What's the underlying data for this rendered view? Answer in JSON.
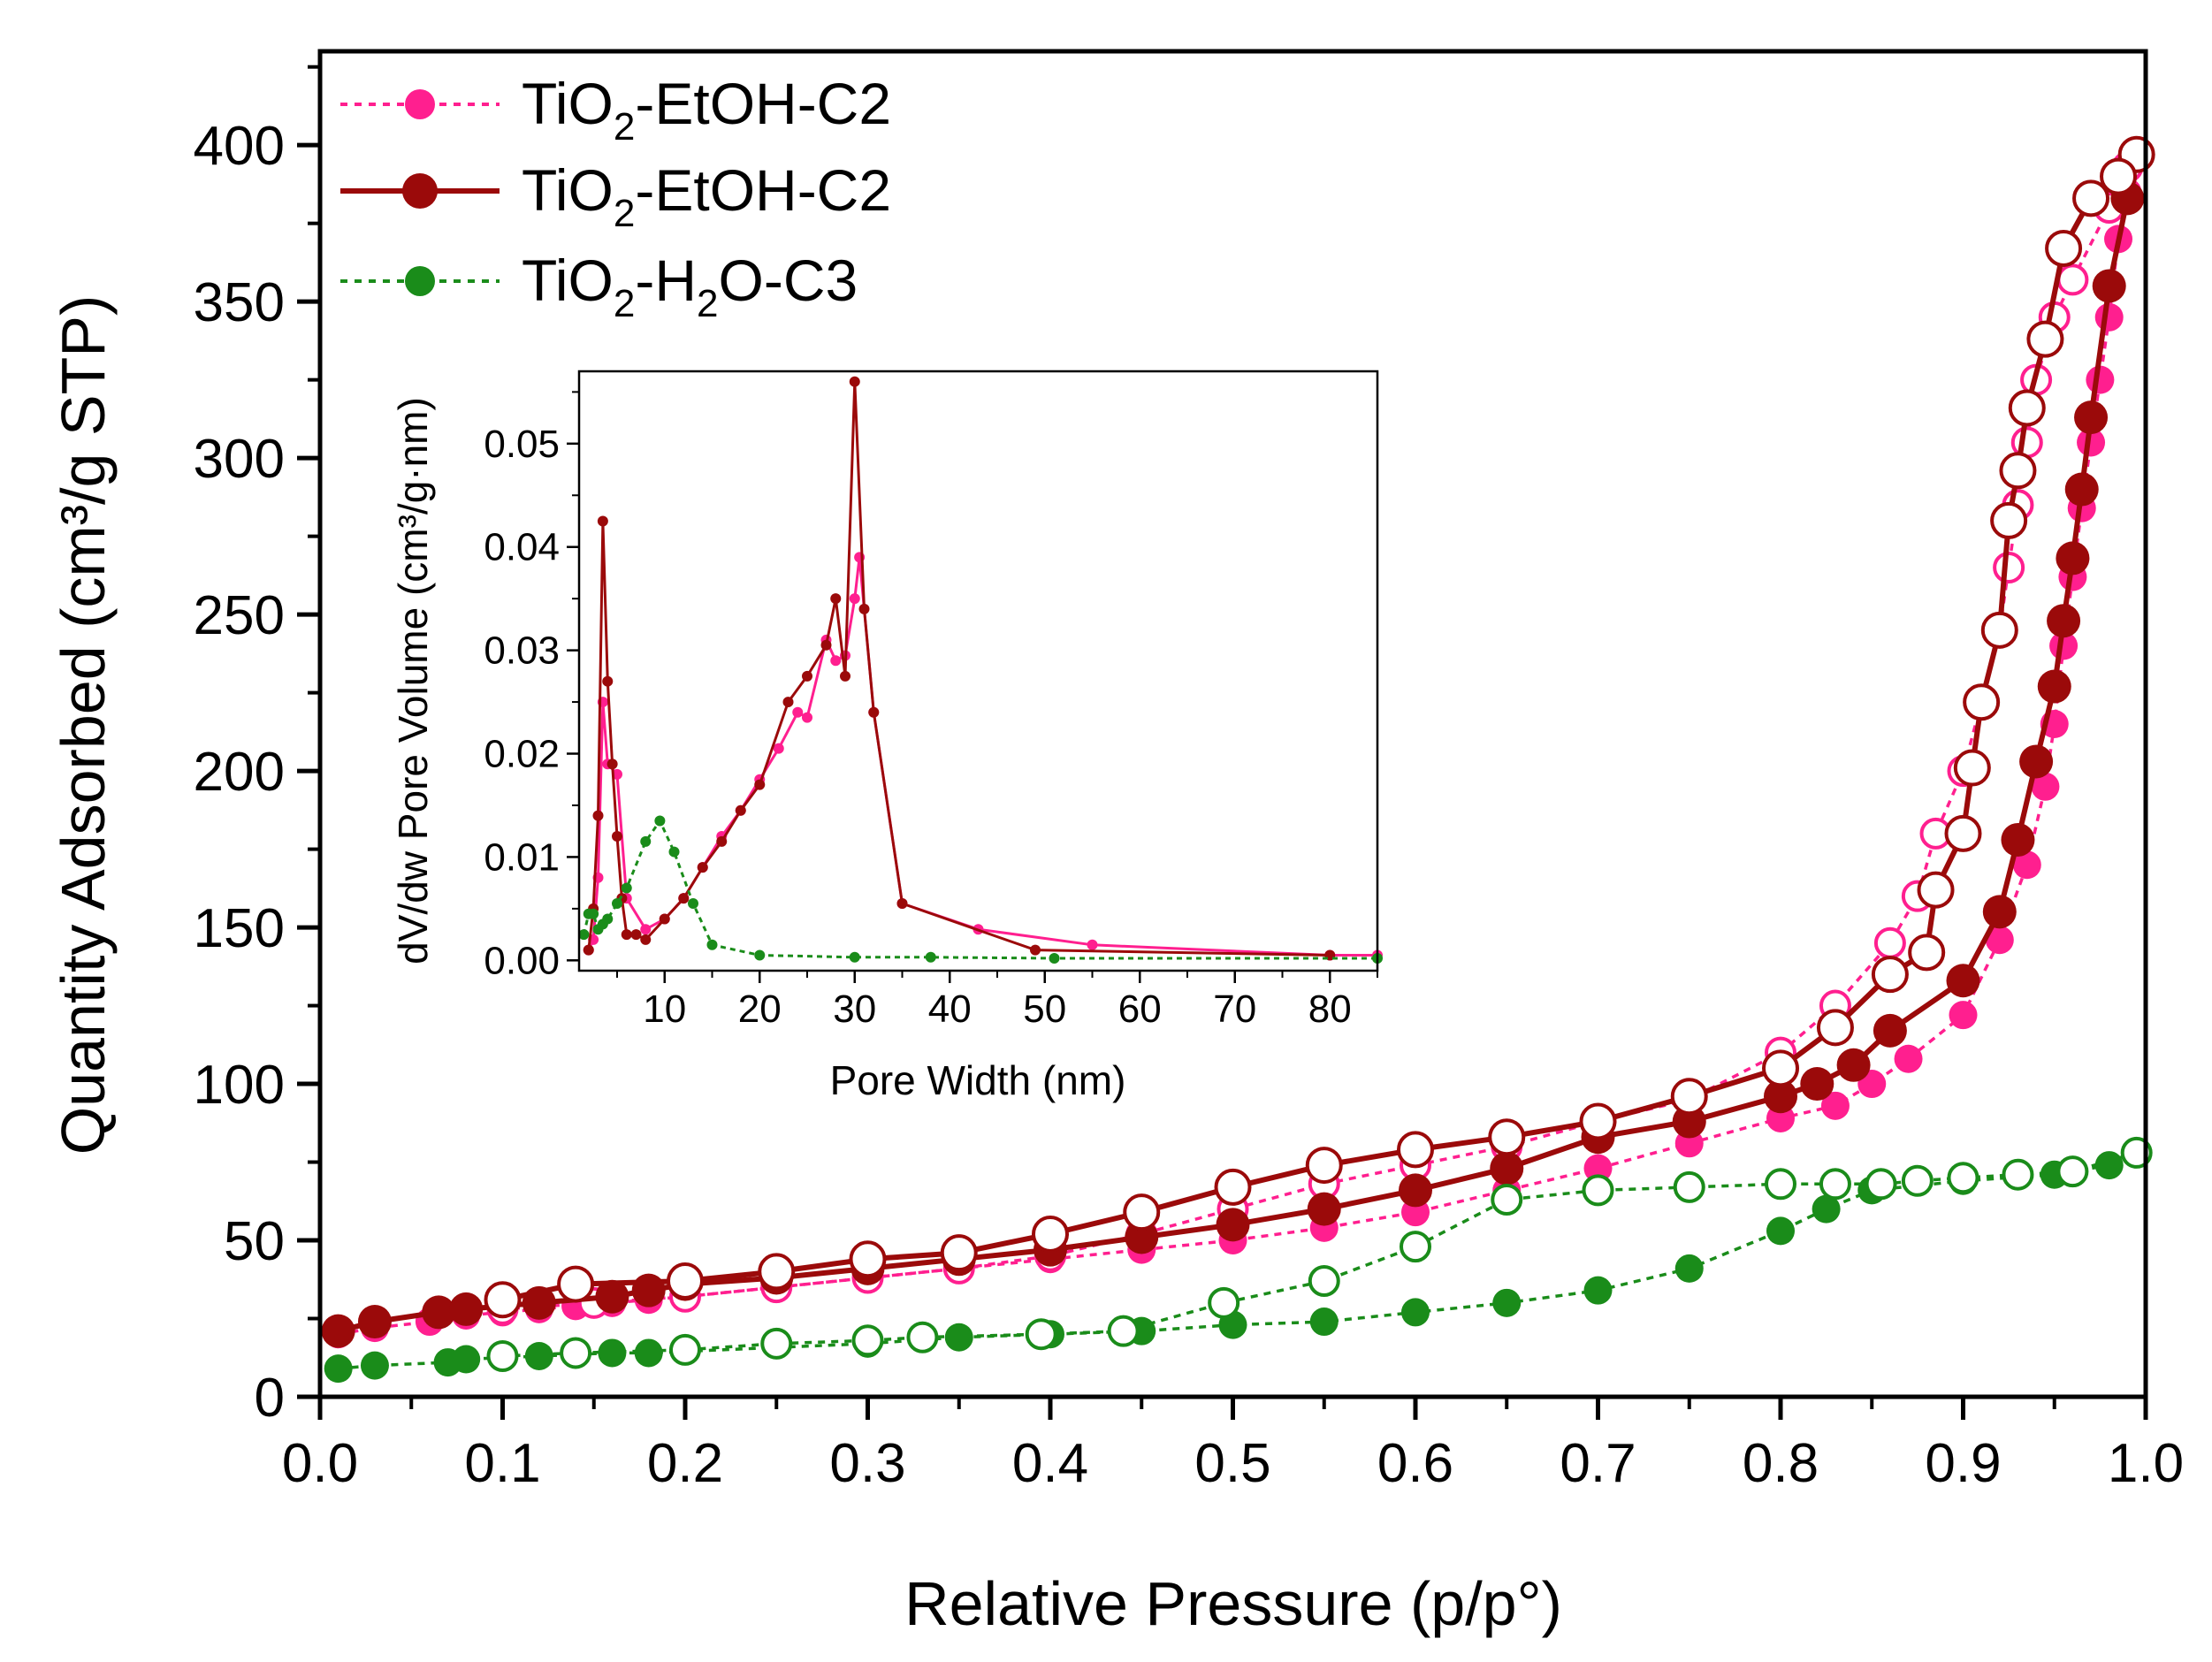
{
  "chart_data": [
    {
      "type": "scatter",
      "xlabel": "Relative Pressure (p/p°)",
      "ylabel": "Quantity Adsorbed (cm³/g STP)",
      "xlim": [
        0.0,
        1.0
      ],
      "ylim": [
        0,
        430
      ],
      "xticks": [
        "0.0",
        "0.1",
        "0.2",
        "0.3",
        "0.4",
        "0.5",
        "0.6",
        "0.7",
        "0.8",
        "0.9",
        "1.0"
      ],
      "yticks": [
        "0",
        "50",
        "100",
        "150",
        "200",
        "250",
        "300",
        "350",
        "400"
      ],
      "grid": false,
      "legend_position": "top-left",
      "legend": [
        {
          "base": "TiO",
          "sub": "2",
          "rest": "-EtOH-C2",
          "color": "#ff1f8f",
          "line": "dotted"
        },
        {
          "base": "TiO",
          "sub": "2",
          "rest": "-EtOH-C2",
          "color": "#9b0a0a",
          "line": "solid"
        },
        {
          "base": "TiO",
          "sub": "2",
          "rest": "-H",
          "sub2": "2",
          "rest2": "O-C3",
          "color": "#1a8c1a",
          "line": "dotted"
        }
      ],
      "series": [
        {
          "name": "TiO2-EtOH-C2",
          "color": "#ff1f8f",
          "line": "dotted",
          "adsorption": {
            "x": [
              0.01,
              0.03,
              0.06,
              0.08,
              0.1,
              0.12,
              0.14,
              0.16,
              0.18,
              0.2,
              0.25,
              0.3,
              0.35,
              0.4,
              0.45,
              0.5,
              0.55,
              0.6,
              0.65,
              0.7,
              0.75,
              0.8,
              0.83,
              0.85,
              0.87,
              0.9,
              0.92,
              0.935,
              0.945,
              0.95,
              0.955,
              0.96,
              0.965,
              0.97,
              0.975,
              0.98,
              0.985,
              0.99
            ],
            "y": [
              20,
              22,
              24,
              26,
              27,
              28,
              29,
              30,
              31,
              32,
              35,
              38,
              41,
              44,
              47,
              50,
              54,
              59,
              66,
              73,
              81,
              89,
              93,
              100,
              108,
              122,
              146,
              170,
              195,
              215,
              240,
              262,
              284,
              305,
              325,
              345,
              370,
              385
            ]
          },
          "desorption": {
            "x": [
              0.99,
              0.98,
              0.96,
              0.95,
              0.94,
              0.935,
              0.93,
              0.925,
              0.92,
              0.91,
              0.9,
              0.885,
              0.875,
              0.86,
              0.83,
              0.8,
              0.75,
              0.7,
              0.65,
              0.6,
              0.55,
              0.5,
              0.45,
              0.4,
              0.35,
              0.3,
              0.25,
              0.2,
              0.15,
              0.1
            ],
            "y": [
              393,
              380,
              357,
              345,
              325,
              305,
              285,
              265,
              245,
              222,
              200,
              180,
              160,
              145,
              125,
              110,
              95,
              88,
              80,
              74,
              68,
              60,
              52,
              45,
              41,
              38,
              35,
              32,
              30,
              28
            ]
          }
        },
        {
          "name": "TiO2-EtOH-C2",
          "color": "#9b0a0a",
          "line": "solid",
          "adsorption": {
            "x": [
              0.01,
              0.03,
              0.065,
              0.08,
              0.12,
              0.16,
              0.18,
              0.2,
              0.25,
              0.3,
              0.35,
              0.4,
              0.45,
              0.5,
              0.55,
              0.6,
              0.65,
              0.7,
              0.75,
              0.8,
              0.82,
              0.84,
              0.86,
              0.9,
              0.92,
              0.93,
              0.94,
              0.95,
              0.955,
              0.96,
              0.965,
              0.97,
              0.98,
              0.99
            ],
            "y": [
              21,
              24,
              27,
              28,
              30,
              32,
              34,
              36,
              38,
              41,
              44,
              47,
              51,
              55,
              60,
              66,
              73,
              83,
              88,
              96,
              100,
              106,
              117,
              133,
              155,
              178,
              203,
              227,
              248,
              268,
              290,
              313,
              355,
              383
            ]
          },
          "desorption": {
            "x": [
              0.995,
              0.985,
              0.97,
              0.955,
              0.945,
              0.935,
              0.93,
              0.925,
              0.92,
              0.91,
              0.905,
              0.9,
              0.885,
              0.88,
              0.86,
              0.83,
              0.8,
              0.75,
              0.7,
              0.65,
              0.6,
              0.55,
              0.5,
              0.45,
              0.4,
              0.35,
              0.3,
              0.25,
              0.2,
              0.14,
              0.1
            ],
            "y": [
              397,
              390,
              383,
              367,
              338,
              316,
              296,
              280,
              245,
              222,
              201,
              180,
              162,
              142,
              135,
              118,
              105,
              96,
              88,
              83,
              79,
              74,
              67,
              59,
              52,
              46,
              44,
              40,
              37,
              36,
              31
            ]
          }
        },
        {
          "name": "TiO2-H2O-C3",
          "color": "#1a8c1a",
          "line": "dotted",
          "adsorption": {
            "x": [
              0.01,
              0.03,
              0.07,
              0.08,
              0.12,
              0.16,
              0.18,
              0.3,
              0.35,
              0.4,
              0.45,
              0.5,
              0.55,
              0.6,
              0.65,
              0.7,
              0.75,
              0.8,
              0.825,
              0.85,
              0.9,
              0.95,
              0.98
            ],
            "y": [
              9,
              10,
              11,
              12,
              13,
              14,
              14,
              17,
              19,
              20,
              21,
              23,
              24,
              27,
              30,
              34,
              41,
              53,
              60,
              66,
              69,
              71,
              74
            ]
          },
          "desorption": {
            "x": [
              0.995,
              0.96,
              0.93,
              0.9,
              0.875,
              0.855,
              0.83,
              0.8,
              0.75,
              0.7,
              0.65,
              0.6,
              0.55,
              0.495,
              0.44,
              0.395,
              0.33,
              0.3,
              0.25,
              0.2,
              0.14,
              0.1
            ],
            "y": [
              78,
              72,
              71,
              70,
              69,
              68,
              68,
              68,
              67,
              66,
              63,
              48,
              37,
              30,
              21,
              20,
              19,
              18,
              17,
              15,
              14,
              13
            ]
          }
        }
      ]
    },
    {
      "type": "line",
      "xlabel": "Pore Width (nm)",
      "ylabel": "dV/dw Pore Volume (cm³/g·nm)",
      "xlim": [
        1,
        85
      ],
      "ylim": [
        -0.001,
        0.057
      ],
      "xticks": [
        "10",
        "20",
        "30",
        "40",
        "50",
        "60",
        "70",
        "80"
      ],
      "yticks": [
        "0.00",
        "0.01",
        "0.02",
        "0.03",
        "0.04",
        "0.05"
      ],
      "grid": false,
      "series": [
        {
          "name": "TiO2-EtOH-C2",
          "color": "#ff1f8f",
          "line": "solid",
          "x": [
            2,
            2.5,
            3,
            3.5,
            4,
            5,
            6,
            8,
            10,
            12,
            14,
            16,
            18,
            20,
            22,
            24,
            25,
            27,
            28,
            29,
            30,
            30.5,
            32,
            35,
            43,
            55,
            80,
            85
          ],
          "y": [
            0.001,
            0.002,
            0.008,
            0.025,
            0.019,
            0.018,
            0.006,
            0.003,
            0.004,
            0.006,
            0.009,
            0.012,
            0.0145,
            0.0175,
            0.0205,
            0.024,
            0.0235,
            0.031,
            0.029,
            0.0295,
            0.035,
            0.039,
            0.024,
            0.0055,
            0.003,
            0.0015,
            0.0005,
            0.0005
          ]
        },
        {
          "name": "TiO2-EtOH-C2",
          "color": "#9b0a0a",
          "line": "solid",
          "x": [
            2,
            2.5,
            3,
            3.5,
            4,
            4.5,
            5,
            5.5,
            6,
            7,
            8,
            10,
            12,
            14,
            16,
            18,
            20,
            23,
            25,
            27,
            28,
            29,
            30,
            31,
            32,
            35,
            49,
            80
          ],
          "y": [
            0.001,
            0.005,
            0.014,
            0.0425,
            0.027,
            0.019,
            0.012,
            0.006,
            0.0025,
            0.0025,
            0.002,
            0.004,
            0.006,
            0.009,
            0.0115,
            0.0145,
            0.017,
            0.025,
            0.0275,
            0.0305,
            0.035,
            0.0275,
            0.056,
            0.034,
            0.024,
            0.0055,
            0.001,
            0.0005
          ]
        },
        {
          "name": "TiO2-H2O-C3",
          "color": "#1a8c1a",
          "line": "dotted",
          "x": [
            1.5,
            2,
            2.5,
            3,
            3.5,
            4,
            5,
            6,
            8,
            9.5,
            11,
            13,
            15,
            20,
            30,
            38,
            51,
            85
          ],
          "y": [
            0.0025,
            0.0045,
            0.0045,
            0.003,
            0.0035,
            0.004,
            0.0055,
            0.007,
            0.0115,
            0.0135,
            0.0105,
            0.0055,
            0.0015,
            0.0005,
            0.0003,
            0.0003,
            0.0002,
            0.0002
          ]
        }
      ]
    }
  ]
}
